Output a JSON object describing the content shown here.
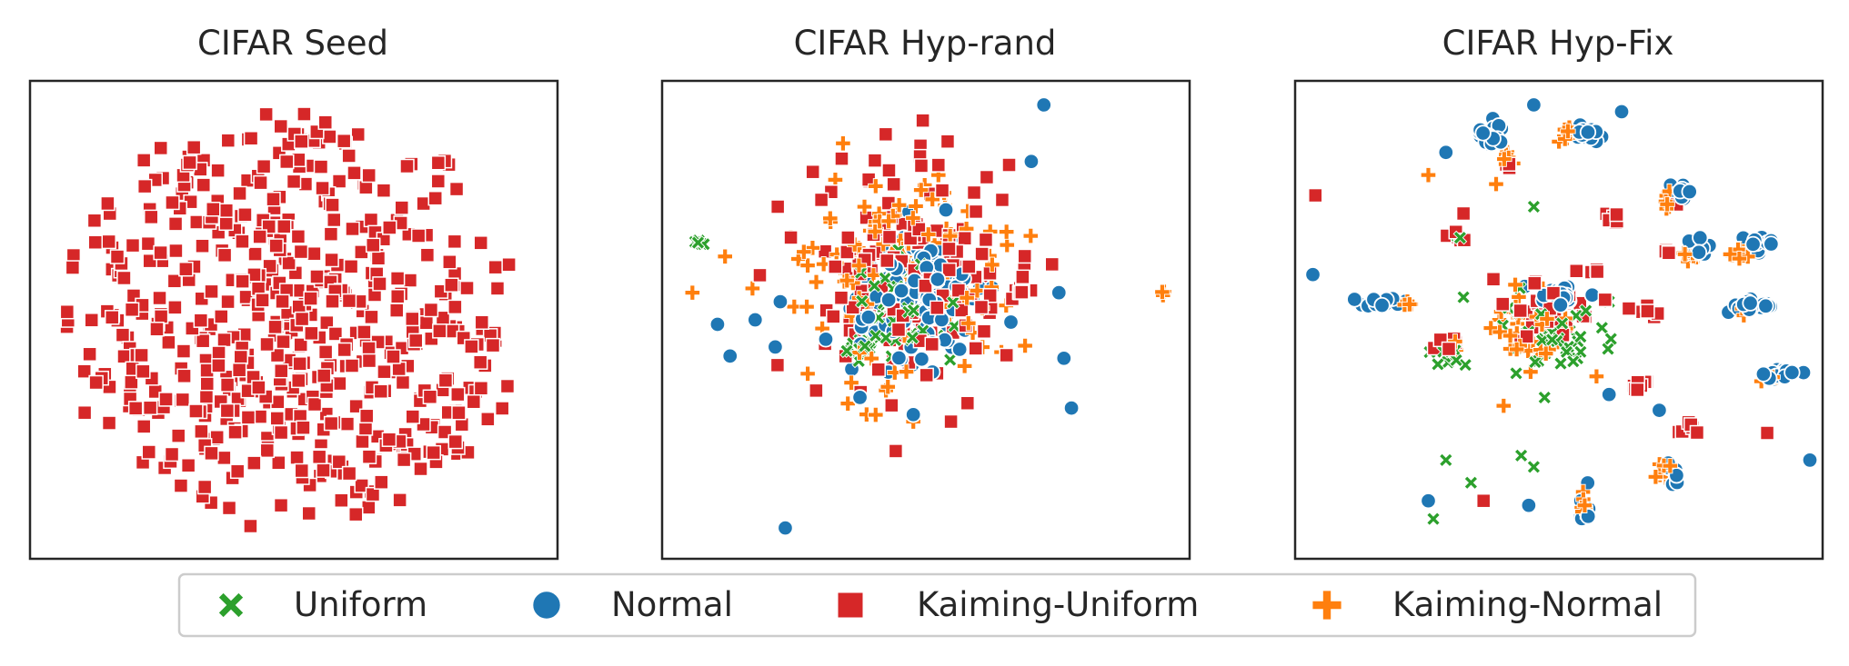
{
  "colors": {
    "uniform": "#2ca02c",
    "normal": "#1f77b4",
    "kaiming_uniform": "#d62728",
    "kaiming_normal": "#ff7f0e",
    "frame": "#262626",
    "legend_border": "#cccccc"
  },
  "legend": {
    "placement": "bottom-center",
    "entries": [
      {
        "label": "Uniform",
        "marker": "x",
        "color": "#2ca02c"
      },
      {
        "label": "Normal",
        "marker": "circle",
        "color": "#1f77b4"
      },
      {
        "label": "Kaiming-Uniform",
        "marker": "square",
        "color": "#d62728"
      },
      {
        "label": "Kaiming-Normal",
        "marker": "plus",
        "color": "#ff7f0e"
      }
    ]
  },
  "chart_data": [
    {
      "type": "scatter",
      "title": "CIFAR Seed",
      "xlabel": "",
      "ylabel": "",
      "grid": false,
      "axis_ticks": "hidden",
      "xlim": [
        -1,
        1
      ],
      "ylim": [
        -1,
        1
      ],
      "clusters": [
        {
          "series": "Kaiming-Uniform",
          "cx": 0.0,
          "cy": 0.0,
          "sx": 0.6,
          "sy": 0.6,
          "n": 560,
          "shape": "disk",
          "r": 0.93
        }
      ]
    },
    {
      "type": "scatter",
      "title": "CIFAR Hyp-rand",
      "xlabel": "",
      "ylabel": "",
      "grid": false,
      "axis_ticks": "hidden",
      "xlim": [
        -1,
        1
      ],
      "ylim": [
        -1,
        1
      ],
      "clusters": [
        {
          "series": "Kaiming-Uniform",
          "cx": -0.06,
          "cy": 0.18,
          "sx": 0.21,
          "sy": 0.24,
          "n": 170
        },
        {
          "series": "Kaiming-Normal",
          "cx": -0.08,
          "cy": 0.2,
          "sx": 0.22,
          "sy": 0.25,
          "n": 140
        },
        {
          "series": "Normal",
          "cx": -0.04,
          "cy": 0.1,
          "sx": 0.13,
          "sy": 0.15,
          "n": 140
        },
        {
          "series": "Uniform",
          "cx": -0.08,
          "cy": 0.05,
          "sx": 0.11,
          "sy": 0.11,
          "n": 70
        },
        {
          "series": "Uniform",
          "cx": -0.27,
          "cy": -0.12,
          "sx": 0.03,
          "sy": 0.025,
          "n": 25
        },
        {
          "series": "Uniform",
          "cx": -0.9,
          "cy": 0.34,
          "sx": 0.015,
          "sy": 0.008,
          "n": 6
        },
        {
          "series": "Kaiming-Uniform",
          "cx": 0.37,
          "cy": 0.12,
          "sx": 0.02,
          "sy": 0.01,
          "n": 8
        },
        {
          "series": "Kaiming-Normal",
          "cx": 0.94,
          "cy": 0.12,
          "sx": 0.005,
          "sy": 0.005,
          "n": 3
        }
      ],
      "points": [
        {
          "series": "Normal",
          "x": 0.47,
          "y": 0.95
        },
        {
          "series": "Normal",
          "x": 0.42,
          "y": 0.7
        },
        {
          "series": "Normal",
          "x": -0.58,
          "y": 0.08
        },
        {
          "series": "Normal",
          "x": -0.6,
          "y": -0.12
        },
        {
          "series": "Normal",
          "x": -0.68,
          "y": 0.0
        },
        {
          "series": "Normal",
          "x": -0.78,
          "y": -0.16
        },
        {
          "series": "Normal",
          "x": -0.83,
          "y": -0.02
        },
        {
          "series": "Normal",
          "x": 0.53,
          "y": 0.12
        },
        {
          "series": "Normal",
          "x": 0.55,
          "y": -0.17
        },
        {
          "series": "Normal",
          "x": 0.58,
          "y": -0.39
        },
        {
          "series": "Normal",
          "x": -0.56,
          "y": -0.92
        },
        {
          "series": "Kaiming-Uniform",
          "x": -0.12,
          "y": -0.58
        },
        {
          "series": "Kaiming-Uniform",
          "x": -0.16,
          "y": 0.82
        },
        {
          "series": "Kaiming-Uniform",
          "x": -0.59,
          "y": 0.5
        },
        {
          "series": "Kaiming-Uniform",
          "x": 0.1,
          "y": -0.45
        },
        {
          "series": "Kaiming-Normal",
          "x": -0.93,
          "y": 0.12
        },
        {
          "series": "Kaiming-Normal",
          "x": -0.8,
          "y": 0.28
        },
        {
          "series": "Kaiming-Normal",
          "x": -0.33,
          "y": 0.78
        },
        {
          "series": "Kaiming-Normal",
          "x": -0.2,
          "y": -0.42
        },
        {
          "series": "Kaiming-Normal",
          "x": -0.05,
          "y": -0.45
        }
      ]
    },
    {
      "type": "scatter",
      "title": "CIFAR Hyp-Fix",
      "xlabel": "",
      "ylabel": "",
      "grid": false,
      "axis_ticks": "hidden",
      "xlim": [
        -1,
        1
      ],
      "ylim": [
        -1,
        1
      ],
      "clusters": [
        {
          "series": "Normal",
          "cx": 0.0,
          "cy": 0.1,
          "sx": 0.05,
          "sy": 0.03,
          "n": 22
        },
        {
          "series": "Kaiming-Uniform",
          "cx": -0.05,
          "cy": 0.05,
          "sx": 0.1,
          "sy": 0.09,
          "n": 30
        },
        {
          "series": "Kaiming-Normal",
          "cx": -0.12,
          "cy": -0.05,
          "sx": 0.09,
          "sy": 0.08,
          "n": 35
        },
        {
          "series": "Uniform",
          "cx": -0.02,
          "cy": -0.08,
          "sx": 0.11,
          "sy": 0.12,
          "n": 45
        },
        {
          "series": "Normal",
          "cx": -0.28,
          "cy": 0.82,
          "sx": 0.03,
          "sy": 0.04,
          "n": 18
        },
        {
          "series": "Kaiming-Normal",
          "cx": -0.21,
          "cy": 0.72,
          "sx": 0.02,
          "sy": 0.02,
          "n": 6
        },
        {
          "series": "Kaiming-Uniform",
          "cx": -0.2,
          "cy": 0.68,
          "sx": 0.01,
          "sy": 0.01,
          "n": 3
        },
        {
          "series": "Normal",
          "cx": 0.1,
          "cy": 0.82,
          "sx": 0.03,
          "sy": 0.02,
          "n": 16
        },
        {
          "series": "Kaiming-Normal",
          "cx": 0.04,
          "cy": 0.82,
          "sx": 0.02,
          "sy": 0.02,
          "n": 10
        },
        {
          "series": "Normal",
          "cx": 0.48,
          "cy": 0.57,
          "sx": 0.02,
          "sy": 0.04,
          "n": 14
        },
        {
          "series": "Kaiming-Normal",
          "cx": 0.45,
          "cy": 0.52,
          "sx": 0.015,
          "sy": 0.03,
          "n": 8
        },
        {
          "series": "Normal",
          "cx": 0.55,
          "cy": 0.32,
          "sx": 0.03,
          "sy": 0.02,
          "n": 12
        },
        {
          "series": "Kaiming-Normal",
          "cx": 0.53,
          "cy": 0.28,
          "sx": 0.03,
          "sy": 0.02,
          "n": 14
        },
        {
          "series": "Kaiming-Uniform",
          "cx": 0.44,
          "cy": 0.3,
          "sx": 0.01,
          "sy": 0.01,
          "n": 3
        },
        {
          "series": "Normal",
          "cx": 0.8,
          "cy": 0.33,
          "sx": 0.05,
          "sy": 0.02,
          "n": 16
        },
        {
          "series": "Kaiming-Normal",
          "cx": 0.72,
          "cy": 0.3,
          "sx": 0.04,
          "sy": 0.02,
          "n": 10
        },
        {
          "series": "Normal",
          "cx": -0.7,
          "cy": 0.08,
          "sx": 0.05,
          "sy": 0.015,
          "n": 14
        },
        {
          "series": "Kaiming-Normal",
          "cx": -0.6,
          "cy": 0.08,
          "sx": 0.02,
          "sy": 0.02,
          "n": 4
        },
        {
          "series": "Normal",
          "cx": 0.77,
          "cy": 0.06,
          "sx": 0.05,
          "sy": 0.015,
          "n": 16
        },
        {
          "series": "Kaiming-Normal",
          "cx": 0.74,
          "cy": 0.04,
          "sx": 0.02,
          "sy": 0.01,
          "n": 4
        },
        {
          "series": "Normal",
          "cx": 0.87,
          "cy": -0.24,
          "sx": 0.04,
          "sy": 0.015,
          "n": 14
        },
        {
          "series": "Kaiming-Normal",
          "cx": 0.84,
          "cy": -0.26,
          "sx": 0.02,
          "sy": 0.01,
          "n": 4
        },
        {
          "series": "Kaiming-Uniform",
          "cx": 0.21,
          "cy": 0.45,
          "sx": 0.02,
          "sy": 0.015,
          "n": 8
        },
        {
          "series": "Kaiming-Uniform",
          "cx": -0.43,
          "cy": 0.37,
          "sx": 0.02,
          "sy": 0.015,
          "n": 7
        },
        {
          "series": "Uniform",
          "cx": -0.4,
          "cy": 0.36,
          "sx": 0.01,
          "sy": 0.01,
          "n": 2
        },
        {
          "series": "Kaiming-Uniform",
          "cx": 0.36,
          "cy": 0.03,
          "sx": 0.03,
          "sy": 0.015,
          "n": 8
        },
        {
          "series": "Kaiming-Uniform",
          "cx": -0.45,
          "cy": -0.12,
          "sx": 0.03,
          "sy": 0.02,
          "n": 6
        },
        {
          "series": "Uniform",
          "cx": -0.44,
          "cy": -0.15,
          "sx": 0.03,
          "sy": 0.02,
          "n": 8
        },
        {
          "series": "Kaiming-Normal",
          "cx": -0.43,
          "cy": -0.12,
          "sx": 0.02,
          "sy": 0.02,
          "n": 4
        },
        {
          "series": "Kaiming-Uniform",
          "cx": 0.33,
          "cy": -0.3,
          "sx": 0.03,
          "sy": 0.015,
          "n": 8
        },
        {
          "series": "Kaiming-Uniform",
          "cx": 0.52,
          "cy": -0.47,
          "sx": 0.02,
          "sy": 0.02,
          "n": 6
        },
        {
          "series": "Normal",
          "cx": 0.45,
          "cy": -0.7,
          "sx": 0.02,
          "sy": 0.04,
          "n": 8
        },
        {
          "series": "Kaiming-Normal",
          "cx": 0.42,
          "cy": -0.67,
          "sx": 0.03,
          "sy": 0.02,
          "n": 10
        },
        {
          "series": "Normal",
          "cx": 0.1,
          "cy": -0.85,
          "sx": 0.015,
          "sy": 0.05,
          "n": 10
        },
        {
          "series": "Kaiming-Normal",
          "cx": 0.09,
          "cy": -0.8,
          "sx": 0.01,
          "sy": 0.03,
          "n": 8
        },
        {
          "series": "Kaiming-Uniform",
          "cx": 0.14,
          "cy": 0.22,
          "sx": 0.01,
          "sy": 0.01,
          "n": 3
        }
      ],
      "points": [
        {
          "series": "Normal",
          "x": -0.45,
          "y": 0.74
        },
        {
          "series": "Normal",
          "x": -0.98,
          "y": 0.2
        },
        {
          "series": "Normal",
          "x": 0.25,
          "y": 0.92
        },
        {
          "series": "Normal",
          "x": -0.1,
          "y": 0.95
        },
        {
          "series": "Normal",
          "x": 1.0,
          "y": -0.62
        },
        {
          "series": "Normal",
          "x": -0.52,
          "y": -0.8
        },
        {
          "series": "Normal",
          "x": -0.12,
          "y": -0.82
        },
        {
          "series": "Normal",
          "x": 0.2,
          "y": -0.33
        },
        {
          "series": "Normal",
          "x": 0.4,
          "y": -0.4
        },
        {
          "series": "Kaiming-Uniform",
          "x": -0.97,
          "y": 0.55
        },
        {
          "series": "Kaiming-Uniform",
          "x": 0.83,
          "y": -0.5
        },
        {
          "series": "Kaiming-Uniform",
          "x": -0.3,
          "y": -0.8
        },
        {
          "series": "Kaiming-Uniform",
          "x": -0.38,
          "y": 0.47
        },
        {
          "series": "Kaiming-Uniform",
          "x": 0.47,
          "y": 0.51
        },
        {
          "series": "Uniform",
          "x": -0.1,
          "y": 0.5
        },
        {
          "series": "Uniform",
          "x": -0.38,
          "y": 0.1
        },
        {
          "series": "Uniform",
          "x": -0.45,
          "y": -0.62
        },
        {
          "series": "Uniform",
          "x": -0.35,
          "y": -0.72
        },
        {
          "series": "Uniform",
          "x": -0.5,
          "y": -0.88
        },
        {
          "series": "Uniform",
          "x": -0.15,
          "y": -0.6
        },
        {
          "series": "Uniform",
          "x": -0.1,
          "y": -0.65
        },
        {
          "series": "Uniform",
          "x": 0.2,
          "y": 0.08
        },
        {
          "series": "Kaiming-Normal",
          "x": -0.25,
          "y": 0.6
        },
        {
          "series": "Kaiming-Normal",
          "x": -0.52,
          "y": 0.64
        },
        {
          "series": "Kaiming-Normal",
          "x": -0.22,
          "y": -0.38
        },
        {
          "series": "Kaiming-Normal",
          "x": 0.15,
          "y": -0.25
        }
      ]
    }
  ]
}
